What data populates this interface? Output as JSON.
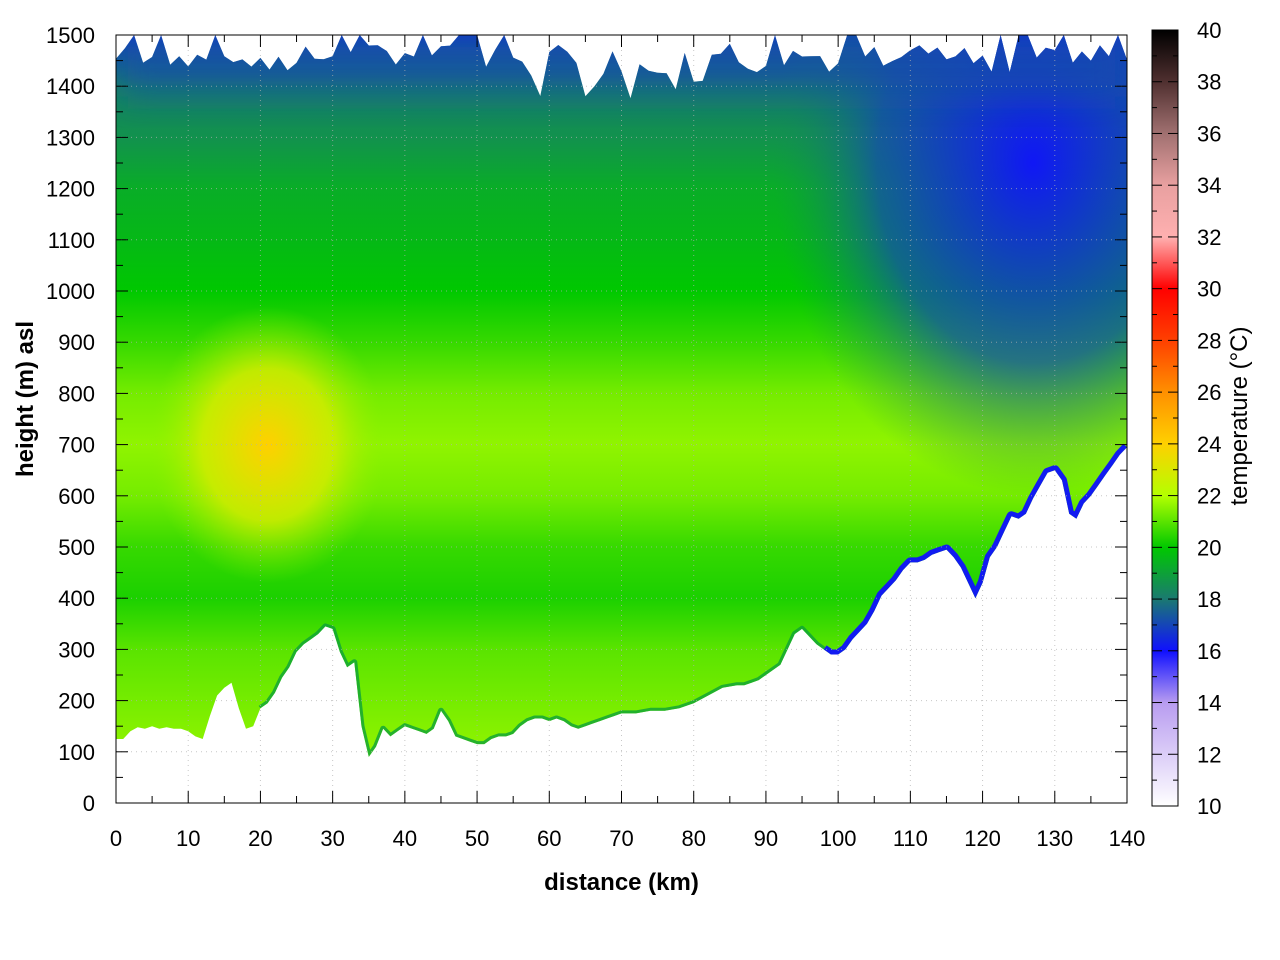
{
  "chart_data": {
    "type": "heatmap",
    "title": "",
    "xlabel": "distance (km)",
    "ylabel": "height (m) asl",
    "colorbar_label": "temperature (°C)",
    "xlim": [
      0,
      140
    ],
    "ylim": [
      0,
      1500
    ],
    "clim": [
      10,
      40
    ],
    "grid": true,
    "x_ticks": [
      "0",
      "10",
      "20",
      "30",
      "40",
      "50",
      "60",
      "70",
      "80",
      "90",
      "100",
      "110",
      "120",
      "130",
      "140"
    ],
    "y_ticks": [
      "0",
      "100",
      "200",
      "300",
      "400",
      "500",
      "600",
      "700",
      "800",
      "900",
      "1000",
      "1100",
      "1200",
      "1300",
      "1400",
      "1500"
    ],
    "colorbar_ticks": [
      "10",
      "12",
      "14",
      "16",
      "18",
      "20",
      "22",
      "24",
      "26",
      "28",
      "30",
      "32",
      "34",
      "36",
      "38",
      "40"
    ],
    "colormap": [
      {
        "value": 10,
        "color": "#ffffff"
      },
      {
        "value": 14,
        "color": "#b89cf0"
      },
      {
        "value": 16,
        "color": "#1010ff"
      },
      {
        "value": 18,
        "color": "#1a7a70"
      },
      {
        "value": 20,
        "color": "#00c800"
      },
      {
        "value": 22,
        "color": "#b4ff00"
      },
      {
        "value": 24,
        "color": "#ffd000"
      },
      {
        "value": 26,
        "color": "#ff9000"
      },
      {
        "value": 28,
        "color": "#ff4000"
      },
      {
        "value": 30,
        "color": "#ff0000"
      },
      {
        "value": 32,
        "color": "#ffb0b0"
      },
      {
        "value": 34,
        "color": "#e8a0a0"
      },
      {
        "value": 36,
        "color": "#a07070"
      },
      {
        "value": 38,
        "color": "#503030"
      },
      {
        "value": 40,
        "color": "#000000"
      }
    ],
    "terrain_bottom": [
      [
        0,
        125
      ],
      [
        1,
        125
      ],
      [
        2,
        140
      ],
      [
        3,
        148
      ],
      [
        4,
        145
      ],
      [
        5,
        150
      ],
      [
        6,
        145
      ],
      [
        7,
        148
      ],
      [
        8,
        145
      ],
      [
        9,
        145
      ],
      [
        10,
        140
      ],
      [
        11,
        130
      ],
      [
        12,
        125
      ],
      [
        13,
        170
      ],
      [
        14,
        210
      ],
      [
        15,
        225
      ],
      [
        16,
        235
      ],
      [
        17,
        185
      ],
      [
        18,
        145
      ],
      [
        19,
        150
      ],
      [
        20,
        185
      ],
      [
        21,
        195
      ],
      [
        22,
        215
      ],
      [
        23,
        245
      ],
      [
        24,
        265
      ],
      [
        25,
        295
      ],
      [
        26,
        310
      ],
      [
        27,
        320
      ],
      [
        28,
        330
      ],
      [
        29,
        345
      ],
      [
        30,
        340
      ],
      [
        31,
        295
      ],
      [
        32,
        265
      ],
      [
        33,
        275
      ],
      [
        34,
        150
      ],
      [
        35,
        90
      ],
      [
        36,
        110
      ],
      [
        37,
        145
      ],
      [
        38,
        130
      ],
      [
        39,
        140
      ],
      [
        40,
        150
      ],
      [
        41,
        145
      ],
      [
        42,
        140
      ],
      [
        43,
        135
      ],
      [
        44,
        145
      ],
      [
        45,
        180
      ],
      [
        46,
        160
      ],
      [
        47,
        130
      ],
      [
        48,
        125
      ],
      [
        49,
        120
      ],
      [
        50,
        115
      ],
      [
        51,
        115
      ],
      [
        52,
        125
      ],
      [
        53,
        130
      ],
      [
        54,
        130
      ],
      [
        55,
        135
      ],
      [
        56,
        150
      ],
      [
        57,
        160
      ],
      [
        58,
        165
      ],
      [
        59,
        165
      ],
      [
        60,
        160
      ],
      [
        61,
        165
      ],
      [
        62,
        160
      ],
      [
        63,
        150
      ],
      [
        64,
        145
      ],
      [
        65,
        150
      ],
      [
        66,
        155
      ],
      [
        67,
        160
      ],
      [
        68,
        165
      ],
      [
        69,
        170
      ],
      [
        70,
        175
      ],
      [
        72,
        175
      ],
      [
        74,
        180
      ],
      [
        76,
        180
      ],
      [
        78,
        185
      ],
      [
        80,
        195
      ],
      [
        82,
        210
      ],
      [
        84,
        225
      ],
      [
        86,
        230
      ],
      [
        87,
        230
      ],
      [
        88,
        235
      ],
      [
        89,
        240
      ],
      [
        90,
        250
      ],
      [
        92,
        270
      ],
      [
        93,
        300
      ],
      [
        94,
        330
      ],
      [
        95,
        340
      ],
      [
        96,
        325
      ],
      [
        97,
        310
      ],
      [
        98,
        300
      ],
      [
        99,
        290
      ],
      [
        100,
        290
      ],
      [
        101,
        300
      ],
      [
        102,
        320
      ],
      [
        103,
        335
      ],
      [
        104,
        350
      ],
      [
        105,
        375
      ],
      [
        106,
        405
      ],
      [
        107,
        420
      ],
      [
        108,
        435
      ],
      [
        109,
        455
      ],
      [
        110,
        470
      ],
      [
        111,
        470
      ],
      [
        112,
        475
      ],
      [
        113,
        485
      ],
      [
        114,
        490
      ],
      [
        115,
        495
      ],
      [
        116,
        480
      ],
      [
        117,
        460
      ],
      [
        118,
        430
      ],
      [
        119,
        400
      ],
      [
        120,
        430
      ],
      [
        121,
        480
      ],
      [
        122,
        500
      ],
      [
        123,
        530
      ],
      [
        124,
        560
      ],
      [
        125,
        555
      ],
      [
        126,
        565
      ],
      [
        127,
        595
      ],
      [
        128,
        620
      ],
      [
        129,
        645
      ],
      [
        130,
        650
      ],
      [
        131,
        630
      ],
      [
        132,
        565
      ],
      [
        133,
        555
      ],
      [
        134,
        585
      ],
      [
        135,
        600
      ],
      [
        136,
        620
      ],
      [
        137,
        640
      ],
      [
        138,
        660
      ],
      [
        139,
        680
      ],
      [
        140,
        695
      ]
    ],
    "top_edge_jagged": true,
    "warm_core": {
      "x_range_km": [
        10,
        32
      ],
      "height_range_m": [
        550,
        850
      ],
      "peak_temperature": 24
    },
    "cold_region_upper_right": {
      "x_range_km": [
        105,
        140
      ],
      "height_range_m": [
        900,
        1500
      ],
      "temperature": 16
    }
  }
}
